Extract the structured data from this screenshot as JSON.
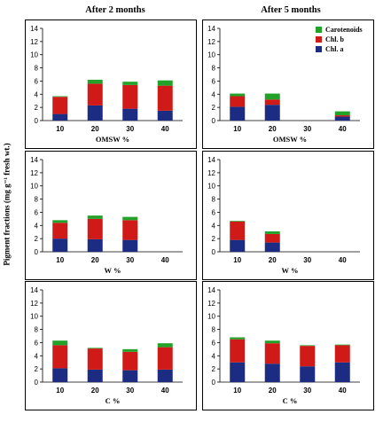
{
  "titles": {
    "left": "After 2 months",
    "right": "After 5 months"
  },
  "ylabel": "Pigment fractions (mg g⁻¹ fresh wt.)",
  "colors": {
    "chl_a": "#1b2c82",
    "chl_b": "#d01a17",
    "carotenoids": "#23a22a"
  },
  "legend": [
    "Carotenoids",
    "Chl. b",
    "Chl. a"
  ],
  "chart_data": [
    {
      "type": "bar",
      "stacked": true,
      "xlabel": "OMSW %",
      "categories": [
        "10",
        "20",
        "30",
        "40"
      ],
      "ylim": [
        0,
        14
      ],
      "yticks": [
        0,
        2,
        4,
        6,
        8,
        10,
        12,
        14
      ],
      "series": [
        {
          "name": "Chl. a",
          "values": [
            1.0,
            2.3,
            1.8,
            1.5
          ]
        },
        {
          "name": "Chl. b",
          "values": [
            2.6,
            3.3,
            3.6,
            3.8
          ]
        },
        {
          "name": "Carotenoids",
          "values": [
            0.1,
            0.6,
            0.5,
            0.8
          ]
        }
      ]
    },
    {
      "type": "bar",
      "stacked": true,
      "xlabel": "OMSW %",
      "categories": [
        "10",
        "20",
        "30",
        "40"
      ],
      "ylim": [
        0,
        14
      ],
      "yticks": [
        0,
        2,
        4,
        6,
        8,
        10,
        12,
        14
      ],
      "series": [
        {
          "name": "Chl. a",
          "values": [
            2.1,
            2.4,
            0,
            0.6
          ]
        },
        {
          "name": "Chl. b",
          "values": [
            1.6,
            0.8,
            0,
            0.2
          ]
        },
        {
          "name": "Carotenoids",
          "values": [
            0.4,
            0.9,
            0,
            0.6
          ]
        }
      ]
    },
    {
      "type": "bar",
      "stacked": true,
      "xlabel": "W %",
      "categories": [
        "10",
        "20",
        "30",
        "40"
      ],
      "ylim": [
        0,
        14
      ],
      "yticks": [
        0,
        2,
        4,
        6,
        8,
        10,
        12,
        14
      ],
      "series": [
        {
          "name": "Chl. a",
          "values": [
            2.0,
            1.9,
            1.8,
            0
          ]
        },
        {
          "name": "Chl. b",
          "values": [
            2.4,
            3.1,
            3.0,
            0
          ]
        },
        {
          "name": "Carotenoids",
          "values": [
            0.4,
            0.5,
            0.5,
            0
          ]
        }
      ]
    },
    {
      "type": "bar",
      "stacked": true,
      "xlabel": "W %",
      "categories": [
        "10",
        "20",
        "30",
        "40"
      ],
      "ylim": [
        0,
        14
      ],
      "yticks": [
        0,
        2,
        4,
        6,
        8,
        10,
        12,
        14
      ],
      "series": [
        {
          "name": "Chl. a",
          "values": [
            1.8,
            1.4,
            0,
            0
          ]
        },
        {
          "name": "Chl. b",
          "values": [
            2.8,
            1.3,
            0,
            0
          ]
        },
        {
          "name": "Carotenoids",
          "values": [
            0.1,
            0.4,
            0,
            0
          ]
        }
      ]
    },
    {
      "type": "bar",
      "stacked": true,
      "xlabel": "C %",
      "categories": [
        "10",
        "20",
        "30",
        "40"
      ],
      "ylim": [
        0,
        14
      ],
      "yticks": [
        0,
        2,
        4,
        6,
        8,
        10,
        12,
        14
      ],
      "series": [
        {
          "name": "Chl. a",
          "values": [
            2.1,
            1.9,
            1.8,
            1.9
          ]
        },
        {
          "name": "Chl. b",
          "values": [
            3.5,
            3.2,
            2.8,
            3.4
          ]
        },
        {
          "name": "Carotenoids",
          "values": [
            0.7,
            0.1,
            0.4,
            0.6
          ]
        }
      ]
    },
    {
      "type": "bar",
      "stacked": true,
      "xlabel": "C %",
      "categories": [
        "10",
        "20",
        "30",
        "40"
      ],
      "ylim": [
        0,
        14
      ],
      "yticks": [
        0,
        2,
        4,
        6,
        8,
        10,
        12,
        14
      ],
      "series": [
        {
          "name": "Chl. a",
          "values": [
            3.0,
            2.8,
            2.4,
            3.0
          ]
        },
        {
          "name": "Chl. b",
          "values": [
            3.5,
            3.1,
            3.1,
            2.6
          ]
        },
        {
          "name": "Carotenoids",
          "values": [
            0.3,
            0.4,
            0.1,
            0.1
          ]
        }
      ]
    }
  ]
}
